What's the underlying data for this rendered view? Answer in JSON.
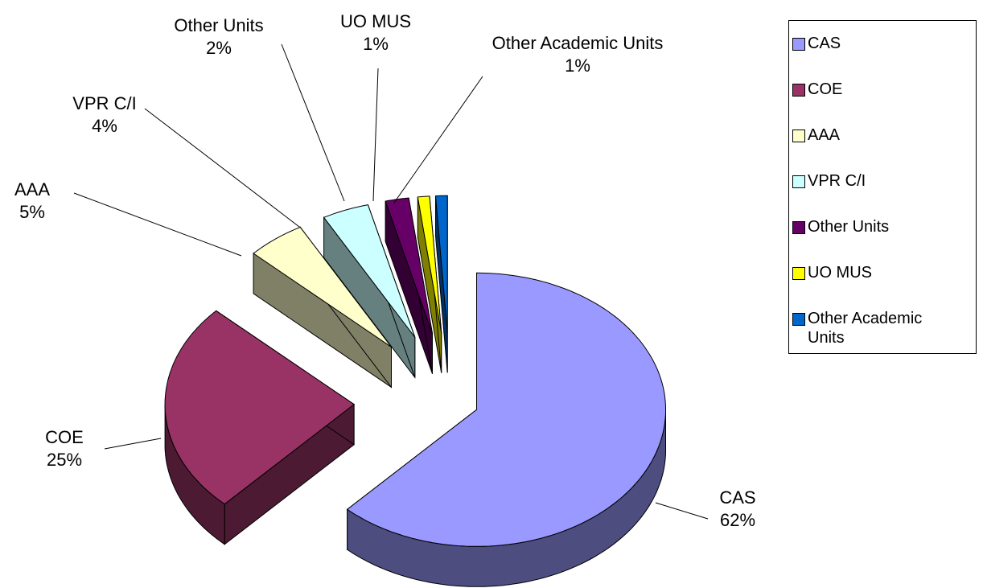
{
  "chart_data": {
    "type": "pie",
    "three_d": true,
    "categories": [
      "CAS",
      "COE",
      "AAA",
      "VPR C/I",
      "Other Units",
      "UO MUS",
      "Other Academic Units"
    ],
    "values": [
      62,
      25,
      5,
      4,
      2,
      1,
      1
    ],
    "value_labels": [
      "62%",
      "25%",
      "5%",
      "4%",
      "2%",
      "1%",
      "1%"
    ],
    "colors": [
      "#9999ff",
      "#993366",
      "#ffffcc",
      "#ccffff",
      "#660066",
      "#ffff00",
      "#0066cc"
    ],
    "legend": "right"
  }
}
